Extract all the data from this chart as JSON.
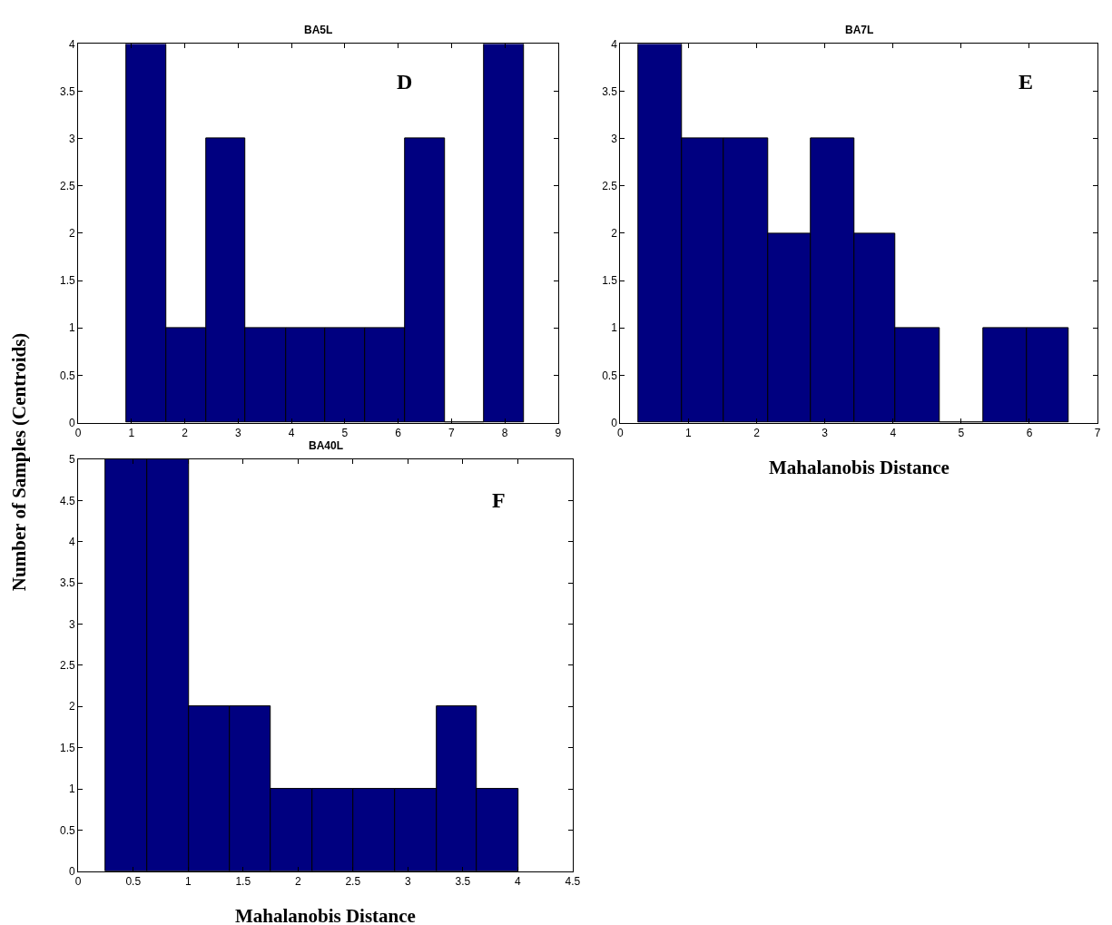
{
  "chart_data": [
    {
      "type": "histogram",
      "title": "BA5L",
      "ylabel": "Number of Samples (Centroids)",
      "annotations": [
        "D"
      ],
      "color": "#000080",
      "bins": [
        0.91,
        1.65,
        2.4,
        3.14,
        3.89,
        4.63,
        5.38,
        6.12,
        6.87,
        7.61,
        8.36
      ],
      "values": [
        4,
        1,
        3,
        1,
        1,
        1,
        1,
        3,
        0,
        4
      ],
      "xlim": [
        0,
        9
      ],
      "xticks": [
        0,
        1,
        2,
        3,
        4,
        5,
        6,
        7,
        8,
        9
      ],
      "ylim": [
        0,
        4
      ],
      "yticks": [
        0,
        0.5,
        1,
        1.5,
        2,
        2.5,
        3,
        3.5,
        4
      ]
    },
    {
      "type": "histogram",
      "title": "BA7L",
      "xlabel": "Mahalanobis Distance",
      "annotations": [
        "E"
      ],
      "color": "#000080",
      "bins": [
        0.26,
        0.91,
        1.52,
        2.17,
        2.79,
        3.43,
        4.04,
        4.69,
        5.32,
        5.96,
        6.57
      ],
      "values": [
        4,
        3,
        3,
        2,
        3,
        2,
        1,
        0,
        1,
        1
      ],
      "xlim": [
        0,
        7
      ],
      "xticks": [
        0,
        1,
        2,
        3,
        4,
        5,
        6,
        7
      ],
      "ylim": [
        0,
        4
      ],
      "yticks": [
        0,
        0.5,
        1,
        1.5,
        2,
        2.5,
        3,
        3.5,
        4
      ]
    },
    {
      "type": "histogram",
      "title": "BA40L",
      "xlabel": "Mahalanobis Distance",
      "annotations": [
        "F"
      ],
      "color": "#000080",
      "bins": [
        0.25,
        0.63,
        1.01,
        1.38,
        1.75,
        2.13,
        2.5,
        2.88,
        3.26,
        3.63,
        4.01
      ],
      "values": [
        5,
        5,
        2,
        2,
        1,
        1,
        1,
        1,
        2,
        1
      ],
      "xlim": [
        0,
        4.5
      ],
      "xticks": [
        0,
        0.5,
        1,
        1.5,
        2,
        2.5,
        3,
        3.5,
        4,
        4.5
      ],
      "ylim": [
        0,
        5
      ],
      "yticks": [
        0,
        0.5,
        1,
        1.5,
        2,
        2.5,
        3,
        3.5,
        4,
        4.5,
        5
      ]
    }
  ]
}
